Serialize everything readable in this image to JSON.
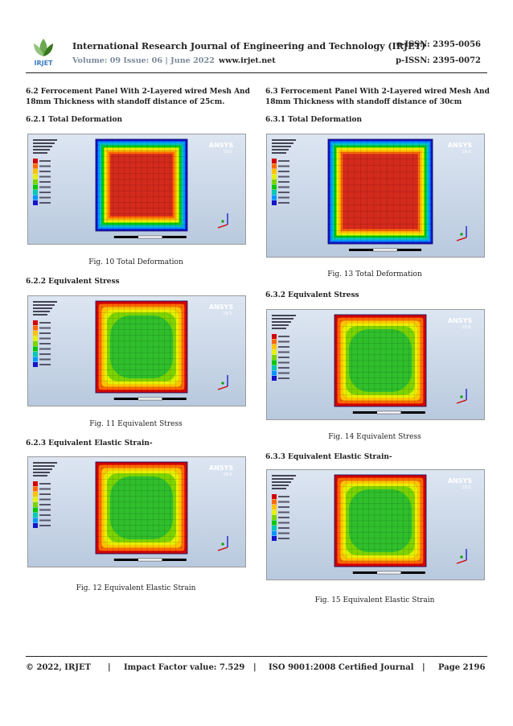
{
  "header": {
    "journal_title": "International Research Journal of Engineering and Technology (IRJET)",
    "eissn": "e-ISSN: 2395-0056",
    "volume_issue": "Volume: 09 Issue: 06 | June 2022",
    "website": "www.irjet.net",
    "pissn": "p-ISSN: 2395-0072",
    "logo_text": "IRJET"
  },
  "left": {
    "section_title": "6.2 Ferrocement Panel With 2-Layered wired Mesh And 18mm Thickness with standoff distance of 25cm.",
    "sub1": "6.2.1 Total Deformation",
    "fig1_caption": "Fig. 10 Total Deformation",
    "sub2": "6.2.2 Equivalent Stress",
    "fig2_caption": "Fig. 11 Equivalent Stress",
    "sub3": "6.2.3 Equivalent Elastic Strain-",
    "fig3_caption": "Fig. 12 Equivalent Elastic Strain"
  },
  "right": {
    "section_title": "6.3 Ferrocement Panel With 2-Layered wired Mesh And 18mm Thickness with standoff distance of 30cm",
    "sub1": "6.3.1 Total Deformation",
    "fig1_caption": "Fig. 13 Total Deformation",
    "sub2": "6.3.2 Equivalent Stress",
    "fig2_caption": "Fig. 14 Equivalent Stress",
    "sub3": "6.3.3 Equivalent Elastic Strain-",
    "fig3_caption": "Fig. 15 Equivalent Elastic Strain"
  },
  "ansys": {
    "brand": "ANSYS",
    "version": "18.0"
  },
  "footer": {
    "copyright": "© 2022, IRJET",
    "sep": "|",
    "impact": "Impact Factor value: 7.529",
    "iso": "ISO 9001:2008 Certified Journal",
    "page": "Page 2196"
  },
  "colors": {
    "fea_background_top": "#dde6f2",
    "fea_background_bottom": "#b9c9de",
    "deformation_core": "#d42a1c",
    "stress_core": "#2fbf2c",
    "legend_stops": [
      "#d20000",
      "#ff6a00",
      "#ffc400",
      "#e6f000",
      "#7cd400",
      "#00c800",
      "#00c8b4",
      "#0096ff",
      "#1414c8"
    ]
  }
}
